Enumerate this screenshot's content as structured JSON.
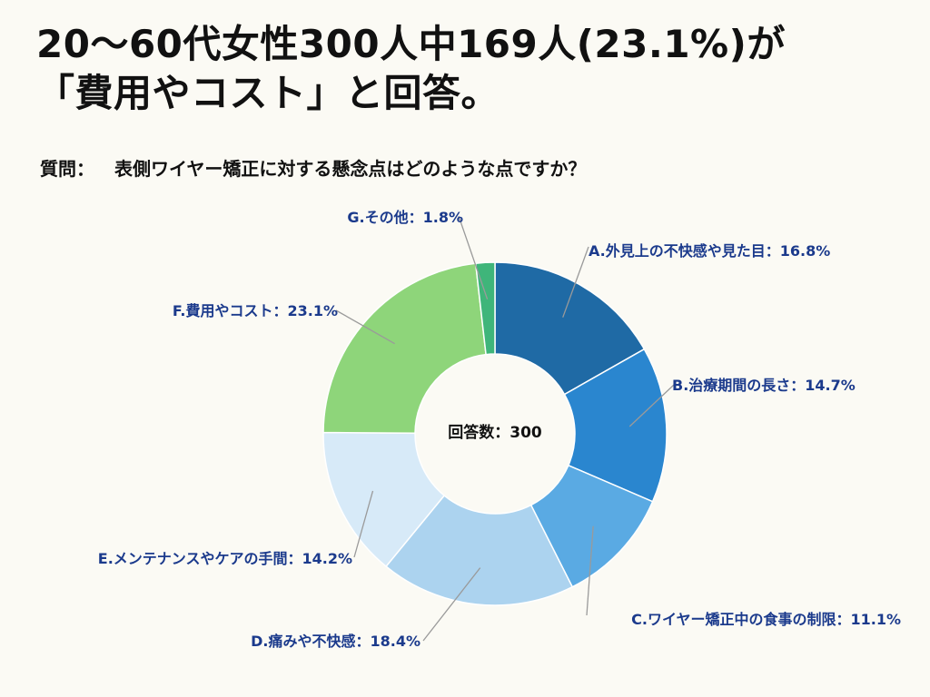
{
  "title": {
    "line1": "20〜60代女性300人中169人(23.1%)が",
    "line2": "「費用やコスト」と回答。"
  },
  "question": {
    "label": "質問：",
    "text": "表側ワイヤー矯正に対する懸念点はどのような点ですか？"
  },
  "chart_data": {
    "type": "pie",
    "donut": true,
    "center_label": "回答数：300",
    "slices": [
      {
        "label": "A.外見上の不快感や見た目：16.8%",
        "value": 16.8,
        "color": "#1f6aa5"
      },
      {
        "label": "B.治療期間の長さ：14.7%",
        "value": 14.7,
        "color": "#2a86cf"
      },
      {
        "label": "C.ワイヤー矯正中の食事の制限：11.1%",
        "value": 11.1,
        "color": "#5aaae3"
      },
      {
        "label": "D.痛みや不快感：18.4%",
        "value": 18.4,
        "color": "#acd3ef"
      },
      {
        "label": "E.メンテナンスやケアの手間：14.2%",
        "value": 14.2,
        "color": "#d7eaf8"
      },
      {
        "label": "F.費用やコスト：23.1%",
        "value": 23.1,
        "color": "#8ed57a"
      },
      {
        "label": "G.その他：1.8%",
        "value": 1.8,
        "color": "#3fb57a"
      }
    ]
  }
}
